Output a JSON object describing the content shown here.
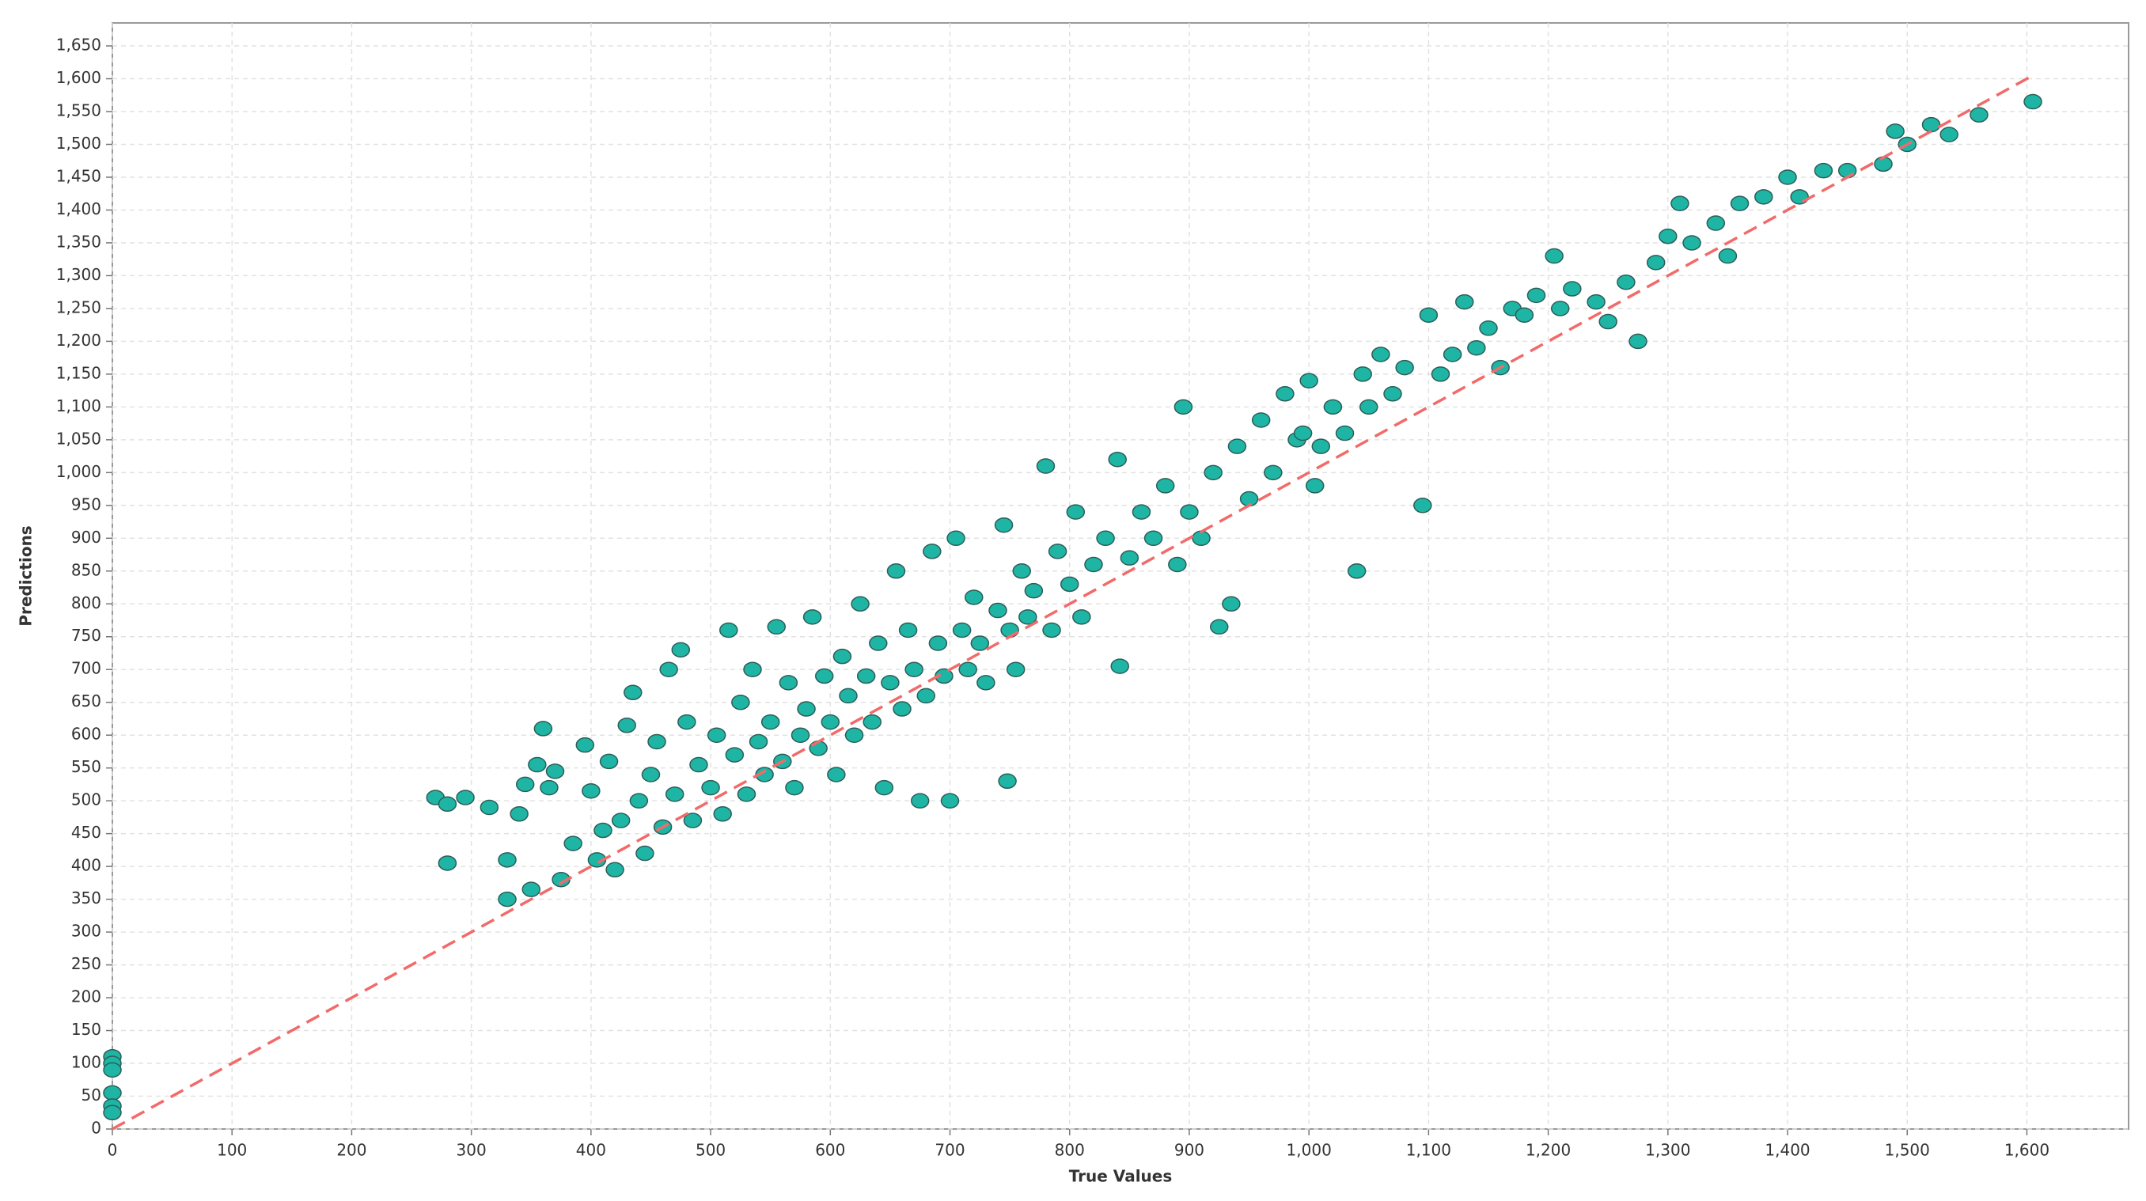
{
  "chart_data": {
    "type": "scatter",
    "xlabel": "True Values",
    "ylabel": "Predictions",
    "xlim": [
      0,
      1685
    ],
    "ylim": [
      0,
      1685
    ],
    "grid": true,
    "xticks": [
      0,
      100,
      200,
      300,
      400,
      500,
      600,
      700,
      800,
      900,
      {
        "value": 1000,
        "label": "1,000"
      },
      {
        "value": 1100,
        "label": "1,100"
      },
      {
        "value": 1200,
        "label": "1,200"
      },
      {
        "value": 1300,
        "label": "1,300"
      },
      {
        "value": 1400,
        "label": "1,400"
      },
      {
        "value": 1500,
        "label": "1,500"
      },
      {
        "value": 1600,
        "label": "1,600"
      }
    ],
    "yticks": [
      0,
      50,
      100,
      150,
      200,
      250,
      300,
      350,
      400,
      450,
      500,
      550,
      600,
      650,
      700,
      750,
      800,
      850,
      900,
      950,
      {
        "value": 1000,
        "label": "1,000"
      },
      {
        "value": 1050,
        "label": "1,050"
      },
      {
        "value": 1100,
        "label": "1,100"
      },
      {
        "value": 1150,
        "label": "1,150"
      },
      {
        "value": 1200,
        "label": "1,200"
      },
      {
        "value": 1250,
        "label": "1,250"
      },
      {
        "value": 1300,
        "label": "1,300"
      },
      {
        "value": 1350,
        "label": "1,350"
      },
      {
        "value": 1400,
        "label": "1,400"
      },
      {
        "value": 1450,
        "label": "1,450"
      },
      {
        "value": 1500,
        "label": "1,500"
      },
      {
        "value": 1550,
        "label": "1,550"
      },
      {
        "value": 1600,
        "label": "1,600"
      },
      {
        "value": 1650,
        "label": "1,650"
      }
    ],
    "series": [
      {
        "mark": "point",
        "color": "#1fb5a5",
        "edgecolor": "#2b5e58",
        "x": [
          0,
          0,
          0,
          0,
          0,
          0,
          270,
          280,
          280,
          295,
          315,
          330,
          330,
          340,
          345,
          350,
          355,
          360,
          365,
          370,
          375,
          385,
          395,
          400,
          405,
          410,
          415,
          420,
          425,
          430,
          435,
          440,
          445,
          450,
          455,
          460,
          465,
          470,
          475,
          480,
          485,
          490,
          500,
          505,
          510,
          515,
          520,
          525,
          530,
          535,
          540,
          545,
          550,
          555,
          560,
          565,
          570,
          575,
          580,
          585,
          590,
          595,
          600,
          605,
          610,
          615,
          620,
          625,
          630,
          635,
          640,
          645,
          650,
          655,
          660,
          665,
          670,
          675,
          680,
          685,
          690,
          695,
          700,
          705,
          710,
          715,
          720,
          725,
          730,
          740,
          745,
          748,
          750,
          755,
          760,
          765,
          770,
          780,
          785,
          790,
          800,
          805,
          810,
          820,
          830,
          840,
          842,
          850,
          860,
          870,
          880,
          890,
          895,
          900,
          910,
          920,
          925,
          935,
          940,
          950,
          960,
          970,
          980,
          990,
          995,
          1000,
          1005,
          1010,
          1020,
          1030,
          1040,
          1045,
          1050,
          1060,
          1070,
          1080,
          1095,
          1100,
          1110,
          1120,
          1130,
          1140,
          1150,
          1160,
          1170,
          1180,
          1190,
          1205,
          1210,
          1220,
          1240,
          1250,
          1265,
          1275,
          1290,
          1300,
          1310,
          1320,
          1340,
          1350,
          1360,
          1380,
          1400,
          1410,
          1430,
          1450,
          1480,
          1490,
          1500,
          1520,
          1535,
          1560,
          1605
        ],
        "values": [
          110,
          100,
          90,
          55,
          35,
          25,
          505,
          495,
          405,
          505,
          490,
          410,
          350,
          480,
          525,
          365,
          555,
          610,
          520,
          545,
          380,
          435,
          585,
          515,
          410,
          455,
          560,
          395,
          470,
          615,
          665,
          500,
          420,
          540,
          590,
          460,
          700,
          510,
          730,
          620,
          470,
          555,
          520,
          600,
          480,
          760,
          570,
          650,
          510,
          700,
          590,
          540,
          620,
          765,
          560,
          680,
          520,
          600,
          640,
          780,
          580,
          690,
          620,
          540,
          720,
          660,
          600,
          800,
          690,
          620,
          740,
          520,
          680,
          850,
          640,
          760,
          700,
          500,
          660,
          880,
          740,
          690,
          500,
          900,
          760,
          700,
          810,
          740,
          680,
          790,
          920,
          530,
          760,
          700,
          850,
          780,
          820,
          1010,
          760,
          880,
          830,
          940,
          780,
          860,
          900,
          1020,
          705,
          870,
          940,
          900,
          980,
          860,
          1100,
          940,
          900,
          1000,
          765,
          800,
          1040,
          960,
          1080,
          1000,
          1120,
          1050,
          1060,
          1140,
          980,
          1040,
          1100,
          1060,
          850,
          1150,
          1100,
          1180,
          1120,
          1160,
          950,
          1240,
          1150,
          1180,
          1260,
          1190,
          1220,
          1160,
          1250,
          1240,
          1270,
          1330,
          1250,
          1280,
          1260,
          1230,
          1290,
          1200,
          1320,
          1360,
          1410,
          1350,
          1380,
          1330,
          1410,
          1420,
          1450,
          1420,
          1460,
          1460,
          1470,
          1520,
          1500,
          1530,
          1515,
          1545,
          1565
        ]
      },
      {
        "mark": "dashed-line",
        "color": "#f26a6a",
        "x": [
          0,
          1605
        ],
        "values": [
          0,
          1605
        ]
      }
    ]
  }
}
